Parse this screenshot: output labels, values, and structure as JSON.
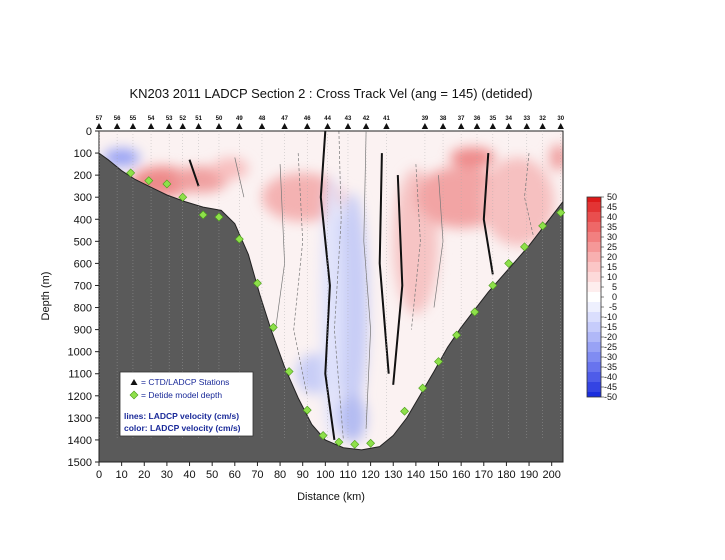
{
  "chart_data": {
    "type": "heatmap",
    "title": "KN203 2011 LADCP Section 2 : Cross Track Vel (ang = 145) (detided)",
    "xlabel": "Distance (km)",
    "ylabel": "Depth (m)",
    "xlim": [
      0,
      205
    ],
    "ylim": [
      1500,
      0
    ],
    "x_ticks": [
      "0",
      "10",
      "20",
      "30",
      "40",
      "50",
      "60",
      "70",
      "80",
      "90",
      "100",
      "110",
      "120",
      "130",
      "140",
      "150",
      "160",
      "170",
      "180",
      "190",
      "200"
    ],
    "y_ticks": [
      "0",
      "100",
      "200",
      "300",
      "400",
      "500",
      "600",
      "700",
      "800",
      "900",
      "1000",
      "1100",
      "1200",
      "1300",
      "1400",
      "1500"
    ],
    "colorbar": {
      "ticks": [
        "50",
        "45",
        "40",
        "35",
        "30",
        "25",
        "20",
        "15",
        "10",
        "5",
        "0",
        "-5",
        "-10",
        "-15",
        "-20",
        "-25",
        "-30",
        "-35",
        "-40",
        "-45",
        "-50"
      ],
      "colors": [
        "#dd1a1a",
        "#e33434",
        "#e94e4e",
        "#ee6868",
        "#f28080",
        "#f59898",
        "#f8b0b0",
        "#fbc6c6",
        "#fddada",
        "#feeeee",
        "#ffffff",
        "#eef0fe",
        "#dadefd",
        "#c6ccfb",
        "#b0b8f8",
        "#98a2f5",
        "#808cf2",
        "#6874ee",
        "#4e5ce9",
        "#3444e3",
        "#1a2edd"
      ]
    },
    "stations": [
      {
        "label": "57",
        "x": 0
      },
      {
        "label": "56",
        "x": 8
      },
      {
        "label": "55",
        "x": 15
      },
      {
        "label": "54",
        "x": 23
      },
      {
        "label": "53",
        "x": 31
      },
      {
        "label": "52",
        "x": 37
      },
      {
        "label": "51",
        "x": 44
      },
      {
        "label": "50",
        "x": 53
      },
      {
        "label": "49",
        "x": 62
      },
      {
        "label": "48",
        "x": 72
      },
      {
        "label": "47",
        "x": 82
      },
      {
        "label": "46",
        "x": 92
      },
      {
        "label": "44",
        "x": 101
      },
      {
        "label": "43",
        "x": 110
      },
      {
        "label": "42",
        "x": 118
      },
      {
        "label": "41",
        "x": 127
      },
      {
        "label": "39",
        "x": 144
      },
      {
        "label": "38",
        "x": 152
      },
      {
        "label": "37",
        "x": 160
      },
      {
        "label": "36",
        "x": 167
      },
      {
        "label": "35",
        "x": 174
      },
      {
        "label": "34",
        "x": 181
      },
      {
        "label": "33",
        "x": 189
      },
      {
        "label": "32",
        "x": 196
      },
      {
        "label": "30",
        "x": 204
      }
    ],
    "detide_points": [
      {
        "x": 14,
        "y": 190
      },
      {
        "x": 22,
        "y": 225
      },
      {
        "x": 30,
        "y": 240
      },
      {
        "x": 37,
        "y": 300
      },
      {
        "x": 46,
        "y": 380
      },
      {
        "x": 53,
        "y": 390
      },
      {
        "x": 62,
        "y": 490
      },
      {
        "x": 70,
        "y": 690
      },
      {
        "x": 77,
        "y": 890
      },
      {
        "x": 84,
        "y": 1090
      },
      {
        "x": 92,
        "y": 1265
      },
      {
        "x": 99,
        "y": 1380
      },
      {
        "x": 106,
        "y": 1410
      },
      {
        "x": 113,
        "y": 1420
      },
      {
        "x": 120,
        "y": 1415
      },
      {
        "x": 135,
        "y": 1270
      },
      {
        "x": 143,
        "y": 1165
      },
      {
        "x": 150,
        "y": 1045
      },
      {
        "x": 158,
        "y": 925
      },
      {
        "x": 166,
        "y": 820
      },
      {
        "x": 174,
        "y": 700
      },
      {
        "x": 181,
        "y": 600
      },
      {
        "x": 188,
        "y": 525
      },
      {
        "x": 196,
        "y": 430
      },
      {
        "x": 204,
        "y": 370
      }
    ],
    "bathymetry": [
      {
        "x": 0,
        "y": 100
      },
      {
        "x": 4,
        "y": 130
      },
      {
        "x": 10,
        "y": 180
      },
      {
        "x": 16,
        "y": 220
      },
      {
        "x": 22,
        "y": 250
      },
      {
        "x": 30,
        "y": 290
      },
      {
        "x": 38,
        "y": 320
      },
      {
        "x": 46,
        "y": 345
      },
      {
        "x": 54,
        "y": 360
      },
      {
        "x": 60,
        "y": 420
      },
      {
        "x": 66,
        "y": 560
      },
      {
        "x": 71,
        "y": 740
      },
      {
        "x": 76,
        "y": 900
      },
      {
        "x": 82,
        "y": 1070
      },
      {
        "x": 88,
        "y": 1210
      },
      {
        "x": 94,
        "y": 1330
      },
      {
        "x": 100,
        "y": 1400
      },
      {
        "x": 108,
        "y": 1435
      },
      {
        "x": 116,
        "y": 1445
      },
      {
        "x": 124,
        "y": 1430
      },
      {
        "x": 130,
        "y": 1380
      },
      {
        "x": 136,
        "y": 1300
      },
      {
        "x": 142,
        "y": 1195
      },
      {
        "x": 148,
        "y": 1090
      },
      {
        "x": 154,
        "y": 980
      },
      {
        "x": 160,
        "y": 890
      },
      {
        "x": 166,
        "y": 810
      },
      {
        "x": 172,
        "y": 730
      },
      {
        "x": 178,
        "y": 660
      },
      {
        "x": 184,
        "y": 590
      },
      {
        "x": 190,
        "y": 520
      },
      {
        "x": 196,
        "y": 440
      },
      {
        "x": 202,
        "y": 360
      },
      {
        "x": 205,
        "y": 320
      }
    ],
    "legend": {
      "items": [
        "= CTD/LADCP Stations",
        "= Detide model depth"
      ],
      "lines_label": "lines: LADCP velocity (cm/s)",
      "color_label": "color: LADCP velocity (cm/s)"
    }
  }
}
